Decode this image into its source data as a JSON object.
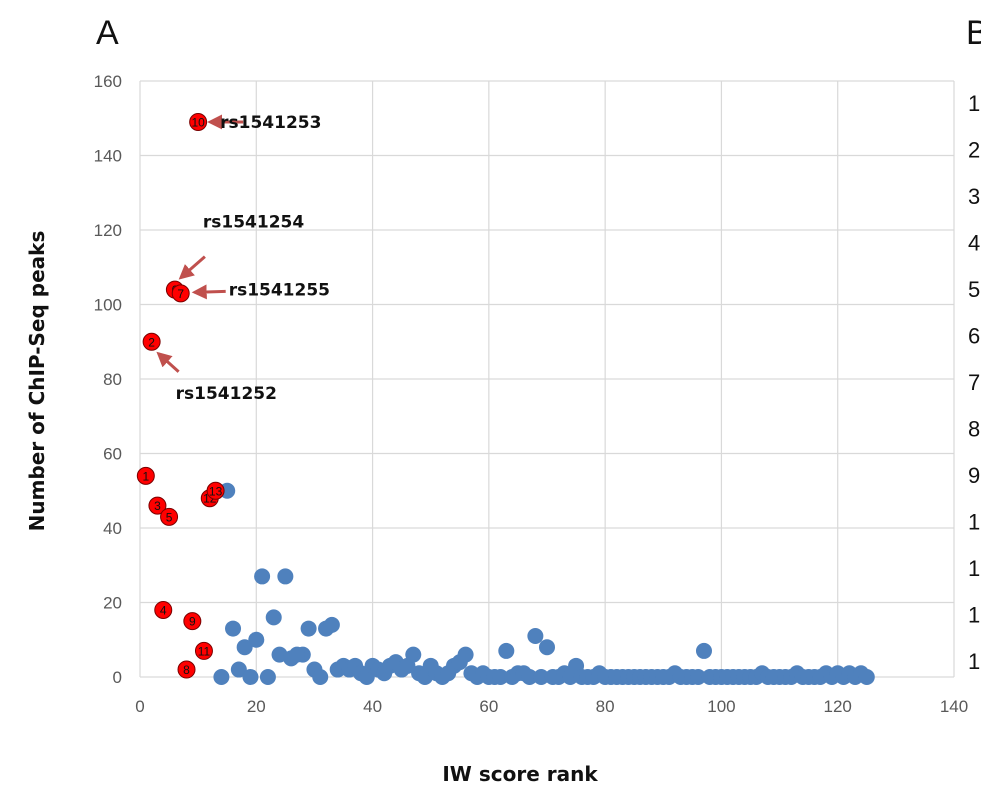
{
  "panel_a_label": "A",
  "panel_b_label": "B",
  "panel_b_row_numbers": [
    "1",
    "2",
    "3",
    "4",
    "5",
    "6",
    "7",
    "8",
    "9",
    "1",
    "1",
    "1",
    "1"
  ],
  "chart_data": {
    "type": "scatter",
    "xlabel": "IW score rank",
    "ylabel": "Number of ChIP-Seq peaks",
    "xlim": [
      0,
      140
    ],
    "ylim": [
      0,
      160
    ],
    "x_ticks": [
      0,
      20,
      40,
      60,
      80,
      100,
      120,
      140
    ],
    "y_ticks": [
      0,
      20,
      40,
      60,
      80,
      100,
      120,
      140,
      160
    ],
    "grid": true,
    "colors": {
      "blue": "#4f81bd",
      "red": "#ff0000",
      "arrow": "#c0504d"
    },
    "series": [
      {
        "color": "#4f81bd",
        "points": [
          [
            15,
            50
          ],
          [
            21,
            27
          ],
          [
            25,
            27
          ],
          [
            23,
            16
          ],
          [
            16,
            13
          ],
          [
            20,
            10
          ],
          [
            18,
            8
          ],
          [
            17,
            2
          ],
          [
            19,
            0
          ],
          [
            22,
            0
          ],
          [
            14,
            0
          ],
          [
            24,
            6
          ],
          [
            26,
            5
          ],
          [
            28,
            6
          ],
          [
            27,
            6
          ],
          [
            29,
            13
          ],
          [
            32,
            13
          ],
          [
            33,
            14
          ],
          [
            30,
            2
          ],
          [
            31,
            0
          ],
          [
            34,
            2
          ],
          [
            35,
            3
          ],
          [
            36,
            2
          ],
          [
            37,
            3
          ],
          [
            38,
            1
          ],
          [
            39,
            0
          ],
          [
            40,
            3
          ],
          [
            41,
            2
          ],
          [
            42,
            1
          ],
          [
            43,
            3
          ],
          [
            44,
            4
          ],
          [
            45,
            2
          ],
          [
            46,
            3
          ],
          [
            47,
            6
          ],
          [
            48,
            1
          ],
          [
            49,
            0
          ],
          [
            50,
            3
          ],
          [
            51,
            1
          ],
          [
            52,
            0
          ],
          [
            53,
            1
          ],
          [
            54,
            3
          ],
          [
            55,
            4
          ],
          [
            56,
            6
          ],
          [
            57,
            1
          ],
          [
            58,
            0
          ],
          [
            59,
            1
          ],
          [
            60,
            0
          ],
          [
            61,
            0
          ],
          [
            62,
            0
          ],
          [
            63,
            7
          ],
          [
            64,
            0
          ],
          [
            65,
            1
          ],
          [
            66,
            1
          ],
          [
            67,
            0
          ],
          [
            68,
            11
          ],
          [
            69,
            0
          ],
          [
            70,
            8
          ],
          [
            71,
            0
          ],
          [
            72,
            0
          ],
          [
            73,
            1
          ],
          [
            74,
            0
          ],
          [
            75,
            3
          ],
          [
            76,
            0
          ],
          [
            77,
            0
          ],
          [
            78,
            0
          ],
          [
            79,
            1
          ],
          [
            80,
            0
          ],
          [
            81,
            0
          ],
          [
            82,
            0
          ],
          [
            83,
            0
          ],
          [
            84,
            0
          ],
          [
            85,
            0
          ],
          [
            86,
            0
          ],
          [
            87,
            0
          ],
          [
            88,
            0
          ],
          [
            89,
            0
          ],
          [
            90,
            0
          ],
          [
            91,
            0
          ],
          [
            92,
            1
          ],
          [
            93,
            0
          ],
          [
            94,
            0
          ],
          [
            95,
            0
          ],
          [
            96,
            0
          ],
          [
            97,
            7
          ],
          [
            98,
            0
          ],
          [
            99,
            0
          ],
          [
            100,
            0
          ],
          [
            101,
            0
          ],
          [
            102,
            0
          ],
          [
            103,
            0
          ],
          [
            104,
            0
          ],
          [
            105,
            0
          ],
          [
            106,
            0
          ],
          [
            107,
            1
          ],
          [
            108,
            0
          ],
          [
            109,
            0
          ],
          [
            110,
            0
          ],
          [
            111,
            0
          ],
          [
            112,
            0
          ],
          [
            113,
            1
          ],
          [
            114,
            0
          ],
          [
            115,
            0
          ],
          [
            116,
            0
          ],
          [
            117,
            0
          ],
          [
            118,
            1
          ],
          [
            119,
            0
          ],
          [
            120,
            1
          ],
          [
            121,
            0
          ],
          [
            122,
            1
          ],
          [
            123,
            0
          ],
          [
            124,
            1
          ],
          [
            125,
            0
          ]
        ]
      },
      {
        "color": "#ff0000",
        "points": [
          {
            "x": 1,
            "y": 54,
            "label": "1"
          },
          {
            "x": 2,
            "y": 90,
            "label": "2"
          },
          {
            "x": 3,
            "y": 46,
            "label": "3"
          },
          {
            "x": 4,
            "y": 18,
            "label": "4"
          },
          {
            "x": 5,
            "y": 43,
            "label": "5"
          },
          {
            "x": 6,
            "y": 104,
            "label": "6"
          },
          {
            "x": 7,
            "y": 103,
            "label": "7"
          },
          {
            "x": 8,
            "y": 2,
            "label": "8"
          },
          {
            "x": 9,
            "y": 15,
            "label": "9"
          },
          {
            "x": 10,
            "y": 149,
            "label": "10"
          },
          {
            "x": 11,
            "y": 7,
            "label": "11"
          },
          {
            "x": 12,
            "y": 48,
            "label": "12"
          },
          {
            "x": 13,
            "y": 50,
            "label": "13"
          }
        ]
      }
    ],
    "annotations": [
      {
        "text": "rs1541253",
        "x": 10,
        "y": 149
      },
      {
        "text": "rs1541254",
        "x": 6,
        "y": 104
      },
      {
        "text": "rs1541255",
        "x": 7,
        "y": 103
      },
      {
        "text": "rs1541252",
        "x": 2,
        "y": 90
      }
    ]
  }
}
